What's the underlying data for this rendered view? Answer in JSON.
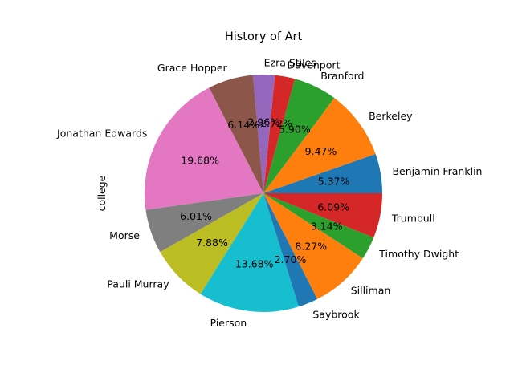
{
  "chart_data": {
    "type": "pie",
    "title": "History of Art",
    "ylabel": "college",
    "slices": [
      {
        "label": "Benjamin Franklin",
        "value": 5.37,
        "pct_text": "5.37%",
        "color": "#1f77b4"
      },
      {
        "label": "Berkeley",
        "value": 9.47,
        "pct_text": "9.47%",
        "color": "#ff7f0e"
      },
      {
        "label": "Branford",
        "value": 5.9,
        "pct_text": "5.90%",
        "color": "#2ca02c"
      },
      {
        "label": "Davenport",
        "value": 2.72,
        "pct_text": "2.72%",
        "color": "#d62728"
      },
      {
        "label": "Ezra Stiles",
        "value": 2.96,
        "pct_text": "2.96%",
        "color": "#9467bd"
      },
      {
        "label": "Grace Hopper",
        "value": 6.14,
        "pct_text": "6.14%",
        "color": "#8c564b"
      },
      {
        "label": "Jonathan Edwards",
        "value": 19.68,
        "pct_text": "19.68%",
        "color": "#e377c2"
      },
      {
        "label": "Morse",
        "value": 6.01,
        "pct_text": "6.01%",
        "color": "#7f7f7f"
      },
      {
        "label": "Pauli Murray",
        "value": 7.88,
        "pct_text": "7.88%",
        "color": "#bcbd22"
      },
      {
        "label": "Pierson",
        "value": 13.68,
        "pct_text": "13.68%",
        "color": "#17becf"
      },
      {
        "label": "Saybrook",
        "value": 2.7,
        "pct_text": "2.70%",
        "color": "#1f77b4"
      },
      {
        "label": "Silliman",
        "value": 8.27,
        "pct_text": "8.27%",
        "color": "#ff7f0e"
      },
      {
        "label": "Timothy Dwight",
        "value": 3.14,
        "pct_text": "3.14%",
        "color": "#2ca02c"
      },
      {
        "label": "Trumbull",
        "value": 6.09,
        "pct_text": "6.09%",
        "color": "#d62728"
      }
    ],
    "start_angle_deg": 0,
    "direction": "counterclockwise",
    "legend": "none"
  }
}
